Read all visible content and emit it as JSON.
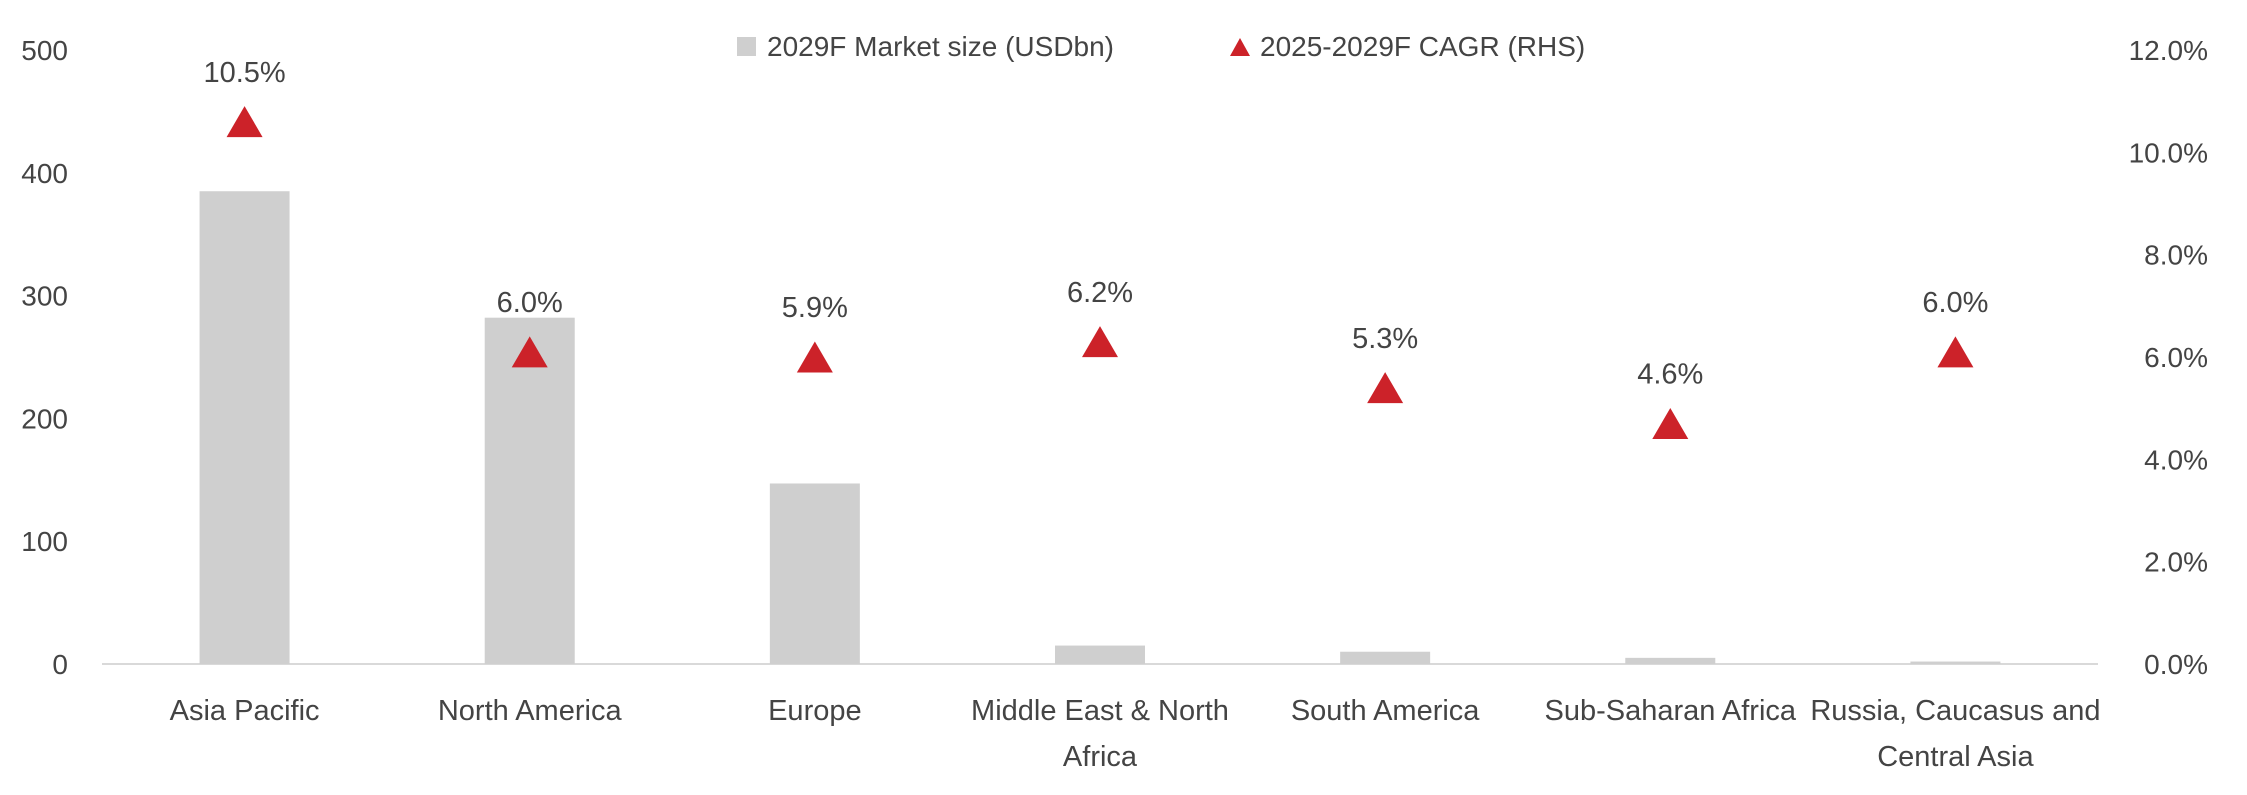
{
  "chart_data": {
    "type": "bar+scatter",
    "categories": [
      [
        "Asia Pacific"
      ],
      [
        "North America"
      ],
      [
        "Europe"
      ],
      [
        "Middle East & North",
        "Africa"
      ],
      [
        "South America"
      ],
      [
        "Sub-Saharan Africa"
      ],
      [
        "Russia, Caucasus and",
        "Central Asia"
      ]
    ],
    "series": [
      {
        "name": "2029F Market size (USDbn)",
        "kind": "bar",
        "axis": "left",
        "color": "#cfcfcf",
        "values": [
          385,
          282,
          147,
          15,
          10,
          5,
          2
        ]
      },
      {
        "name": "2025-2029F CAGR (RHS)",
        "kind": "triangle",
        "axis": "right",
        "color": "#cc2229",
        "values": [
          10.5,
          6.0,
          5.9,
          6.2,
          5.3,
          4.6,
          6.0
        ],
        "labels": [
          "10.5%",
          "6.0%",
          "5.9%",
          "6.2%",
          "5.3%",
          "4.6%",
          "6.0%"
        ]
      }
    ],
    "y_left": {
      "min": 0,
      "max": 500,
      "ticks": [
        "0",
        "100",
        "200",
        "300",
        "400",
        "500"
      ]
    },
    "y_right": {
      "min": 0,
      "max": 12,
      "ticks": [
        "0.0%",
        "2.0%",
        "4.0%",
        "6.0%",
        "8.0%",
        "10.0%",
        "12.0%"
      ]
    },
    "legend_position": "top-center",
    "grid": false
  }
}
